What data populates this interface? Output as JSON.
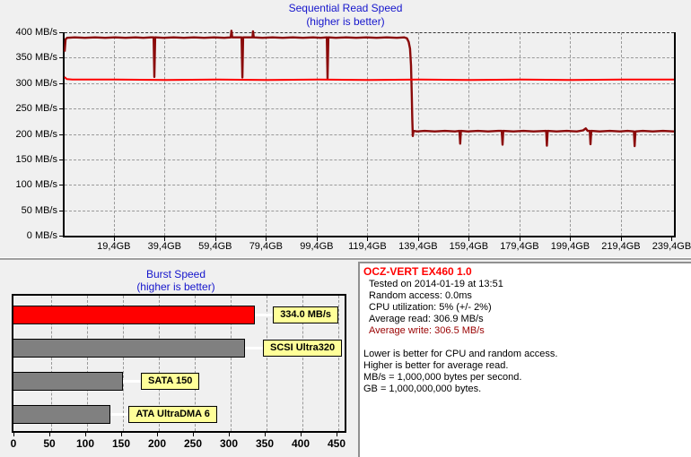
{
  "app": {
    "background_color": "#f0f0f0",
    "title_color": "#1515cc",
    "grid_color": "#999999"
  },
  "sequential_read": {
    "title": "Sequential Read Speed",
    "subtitle": "(higher is better)",
    "y_unit": "MB/s"
  },
  "burst": {
    "title": "Burst Speed",
    "subtitle": "(higher is better)"
  },
  "info": {
    "lines": [
      {
        "text": "OCZ-VERT EX460 1.0",
        "color": "#ff0000",
        "bold": true,
        "indent": 0
      },
      {
        "text": "Tested on 2014-01-19 at 13:51",
        "color": "#000000",
        "bold": false,
        "indent": 1
      },
      {
        "text": "Random access: 0.0ms",
        "color": "#000000",
        "bold": false,
        "indent": 1
      },
      {
        "text": "CPU utilization: 5% (+/- 2%)",
        "color": "#000000",
        "bold": false,
        "indent": 1
      },
      {
        "text": "Average read: 306.9 MB/s",
        "color": "#000000",
        "bold": false,
        "indent": 1
      },
      {
        "text": "Average write: 306.5 MB/s",
        "color": "#990000",
        "bold": false,
        "indent": 1
      },
      {
        "spacer": true
      },
      {
        "text": "Lower is better for CPU and random access.",
        "color": "#000000",
        "bold": false,
        "indent": 0
      },
      {
        "text": "Higher is better for average read.",
        "color": "#000000",
        "bold": false,
        "indent": 0
      },
      {
        "text": "MB/s = 1,000,000 bytes per second.",
        "color": "#000000",
        "bold": false,
        "indent": 0
      },
      {
        "text": "GB = 1,000,000,000 bytes.",
        "color": "#000000",
        "bold": false,
        "indent": 0
      }
    ]
  },
  "chart_data": [
    {
      "type": "line",
      "title": "Sequential Read Speed",
      "subtitle": "(higher is better)",
      "xlim": [
        0,
        240.3
      ],
      "ylim": [
        0,
        400
      ],
      "y_ticks": [
        0,
        50,
        100,
        150,
        200,
        250,
        300,
        350,
        400
      ],
      "x_ticks": [
        {
          "gb": 19.4,
          "label": "19,4GB"
        },
        {
          "gb": 39.4,
          "label": "39,4GB"
        },
        {
          "gb": 59.4,
          "label": "59,4GB"
        },
        {
          "gb": 79.4,
          "label": "79,4GB"
        },
        {
          "gb": 99.4,
          "label": "99,4GB"
        },
        {
          "gb": 119.4,
          "label": "119,4GB"
        },
        {
          "gb": 139.4,
          "label": "139,4GB"
        },
        {
          "gb": 159.4,
          "label": "159,4GB"
        },
        {
          "gb": 179.4,
          "label": "179,4GB"
        },
        {
          "gb": 199.4,
          "label": "199,4GB"
        },
        {
          "gb": 219.4,
          "label": "219,4GB"
        },
        {
          "gb": 239.4,
          "label": "239,4GB"
        }
      ],
      "grid": true,
      "series": [
        {
          "name": "sequential-read-speed",
          "color": "#8b0a0a",
          "width": 2.4,
          "points": [
            [
              0,
              362
            ],
            [
              0.4,
              386
            ],
            [
              1,
              389
            ],
            [
              4,
              390
            ],
            [
              8,
              389
            ],
            [
              12,
              390
            ],
            [
              16,
              389
            ],
            [
              20,
              390
            ],
            [
              24,
              389
            ],
            [
              28,
              390
            ],
            [
              31,
              389
            ],
            [
              34,
              390
            ],
            [
              35.1,
              390
            ],
            [
              35.4,
              312
            ],
            [
              35.7,
              390
            ],
            [
              39,
              389
            ],
            [
              43,
              390
            ],
            [
              47,
              389
            ],
            [
              51,
              390
            ],
            [
              55,
              389
            ],
            [
              59,
              390
            ],
            [
              63,
              389
            ],
            [
              65.5,
              390
            ],
            [
              65.8,
              403
            ],
            [
              66.1,
              390
            ],
            [
              69.8,
              390
            ],
            [
              70.1,
              311
            ],
            [
              70.4,
              390
            ],
            [
              73,
              390
            ],
            [
              74.1,
              390
            ],
            [
              74.3,
              402
            ],
            [
              74.6,
              390
            ],
            [
              78,
              389
            ],
            [
              82,
              390
            ],
            [
              86,
              389
            ],
            [
              90,
              390
            ],
            [
              94,
              389
            ],
            [
              98,
              390
            ],
            [
              101,
              389
            ],
            [
              103.4,
              390
            ],
            [
              103.7,
              309
            ],
            [
              104,
              390
            ],
            [
              107,
              389
            ],
            [
              111,
              390
            ],
            [
              115,
              389
            ],
            [
              119,
              390
            ],
            [
              123,
              389
            ],
            [
              127,
              390
            ],
            [
              131,
              389
            ],
            [
              134,
              390
            ],
            [
              135,
              388
            ],
            [
              135.7,
              381
            ],
            [
              136.2,
              368
            ],
            [
              136.6,
              335
            ],
            [
              136.9,
              280
            ],
            [
              137.1,
              230
            ],
            [
              137.3,
              196
            ],
            [
              137.6,
              206
            ],
            [
              139,
              205
            ],
            [
              142,
              206
            ],
            [
              146,
              205
            ],
            [
              150,
              206
            ],
            [
              154,
              205
            ],
            [
              155.7,
              206
            ],
            [
              156,
              181
            ],
            [
              156.3,
              206
            ],
            [
              159,
              205
            ],
            [
              163,
              206
            ],
            [
              167,
              205
            ],
            [
              171,
              206
            ],
            [
              172.4,
              206
            ],
            [
              172.7,
              179
            ],
            [
              173,
              206
            ],
            [
              177,
              205
            ],
            [
              181,
              206
            ],
            [
              185,
              205
            ],
            [
              189.9,
              206
            ],
            [
              190.2,
              177
            ],
            [
              190.5,
              206
            ],
            [
              194,
              205
            ],
            [
              198,
              206
            ],
            [
              202,
              205
            ],
            [
              204.5,
              207
            ],
            [
              205.5,
              211
            ],
            [
              206.3,
              206
            ],
            [
              207.1,
              206
            ],
            [
              207.4,
              180
            ],
            [
              207.7,
              206
            ],
            [
              211,
              205
            ],
            [
              215,
              206
            ],
            [
              219,
              205
            ],
            [
              222,
              206
            ],
            [
              224.5,
              205
            ],
            [
              224.8,
              176
            ],
            [
              225.1,
              205
            ],
            [
              228,
              206
            ],
            [
              232,
              205
            ],
            [
              236,
              206
            ],
            [
              240.3,
              205
            ]
          ]
        },
        {
          "name": "average-write-speed",
          "color": "#ff0000",
          "width": 2,
          "points": [
            [
              0,
              312
            ],
            [
              0.8,
              308
            ],
            [
              3,
              307
            ],
            [
              20,
              307
            ],
            [
              40,
              306
            ],
            [
              60,
              307
            ],
            [
              80,
              306
            ],
            [
              100,
              307
            ],
            [
              120,
              306
            ],
            [
              140,
              307
            ],
            [
              160,
              306
            ],
            [
              180,
              307
            ],
            [
              200,
              306
            ],
            [
              220,
              307
            ],
            [
              240.3,
              307
            ]
          ]
        }
      ]
    },
    {
      "type": "bar",
      "title": "Burst Speed",
      "subtitle": "(higher is better)",
      "xlim": [
        0,
        450
      ],
      "x_ticks": [
        0,
        50,
        100,
        150,
        200,
        250,
        300,
        350,
        400,
        450
      ],
      "grid": true,
      "bars": [
        {
          "label": "334.0 MB/s",
          "value": 334,
          "color": "#ff0000"
        },
        {
          "label": "SCSI Ultra320",
          "value": 320,
          "color": "#808080"
        },
        {
          "label": "SATA 150",
          "value": 150,
          "color": "#808080"
        },
        {
          "label": "ATA UltraDMA 6",
          "value": 133,
          "color": "#808080"
        }
      ],
      "bar_label_bg": "#ffff99"
    }
  ]
}
